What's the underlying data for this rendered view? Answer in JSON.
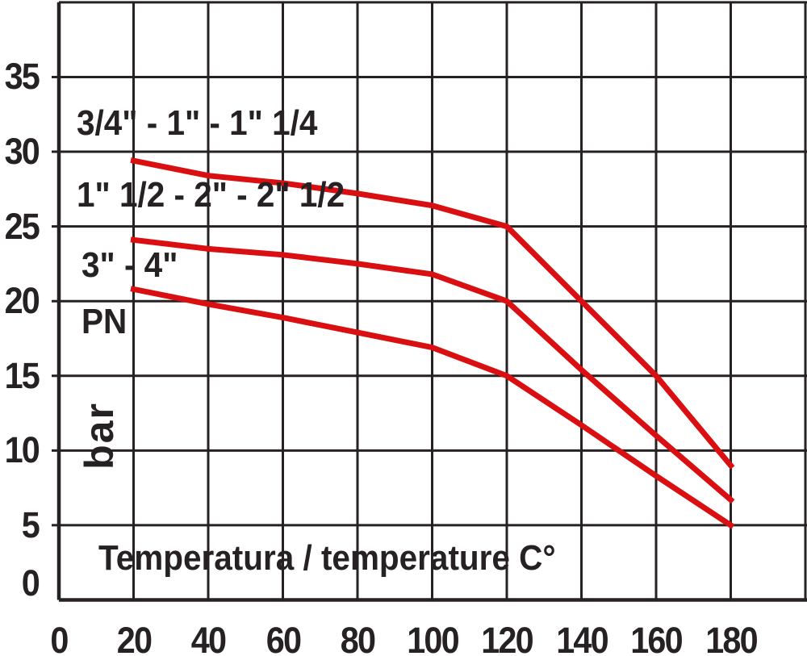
{
  "chart_data": {
    "type": "line",
    "title": "",
    "xlabel": "Temperatura / temperature C°",
    "ylabel": "PN",
    "y_unit": "bar",
    "xlim": [
      0,
      200
    ],
    "ylim": [
      0,
      40
    ],
    "x_grid_step": 20,
    "y_grid_step": 5,
    "x_ticks": [
      0,
      20,
      40,
      60,
      80,
      100,
      120,
      140,
      160,
      180
    ],
    "y_ticks": [
      0,
      5,
      10,
      15,
      20,
      25,
      30,
      35
    ],
    "grid": true,
    "legend_position": "inline-left-above-each-curve",
    "colors": {
      "curve": "#d90f12",
      "grid": "#262123",
      "text": "#262123",
      "background": "#ffffff"
    },
    "x": [
      20,
      40,
      60,
      80,
      100,
      120,
      140,
      160,
      180
    ],
    "series": [
      {
        "name": "3/4\" - 1\" - 1\" 1/4",
        "values": [
          29.4,
          28.4,
          27.9,
          27.2,
          26.4,
          25,
          20,
          15,
          9
        ]
      },
      {
        "name": "1\" 1/2 - 2\" - 2\" 1/2",
        "values": [
          24.1,
          23.5,
          23.1,
          22.5,
          21.8,
          20,
          15.4,
          11,
          6.7
        ]
      },
      {
        "name": "3\" - 4\"",
        "values": [
          20.8,
          19.8,
          18.9,
          17.9,
          16.9,
          15,
          11.7,
          8.3,
          5
        ]
      }
    ]
  }
}
